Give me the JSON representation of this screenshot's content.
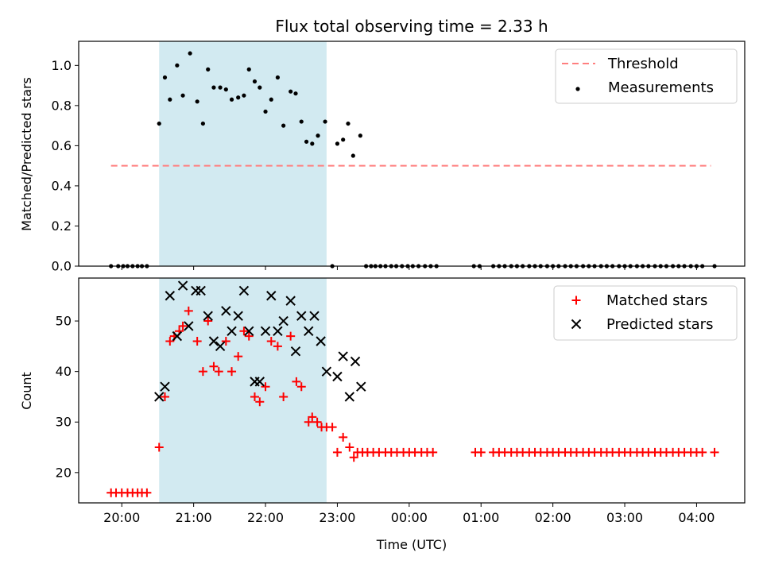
{
  "title": "Flux total observing time = 2.33 h",
  "chart_data": [
    {
      "type": "scatter",
      "panel": "top",
      "ylabel": "Matched/Predicted stars",
      "ylim": [
        0,
        1.12
      ],
      "yticks": [
        0.0,
        0.2,
        0.4,
        0.6,
        0.8,
        1.0
      ],
      "ytick_labels": [
        "0.0",
        "0.2",
        "0.4",
        "0.6",
        "0.8",
        "1.0"
      ],
      "xlim": [
        19.4,
        28.67
      ],
      "legend": {
        "position": "top-right",
        "entries": [
          "Threshold",
          "Measurements"
        ]
      },
      "observing_span": {
        "start": 20.52,
        "end": 22.85,
        "color": "#add8e6"
      },
      "threshold": {
        "name": "Threshold",
        "y": 0.5,
        "x_start": 19.85,
        "x_end": 28.2,
        "color": "#ff7f7f"
      },
      "series": [
        {
          "name": "Measurements",
          "color": "#000000",
          "x": [
            19.85,
            19.95,
            20.02,
            20.08,
            20.15,
            20.22,
            20.28,
            20.35,
            20.52,
            20.6,
            20.67,
            20.77,
            20.85,
            20.95,
            21.05,
            21.13,
            21.2,
            21.28,
            21.37,
            21.45,
            21.53,
            21.62,
            21.7,
            21.77,
            21.85,
            21.92,
            22.0,
            22.08,
            22.17,
            22.25,
            22.35,
            22.42,
            22.5,
            22.57,
            22.65,
            22.73,
            22.83,
            22.93,
            23.0,
            23.08,
            23.15,
            23.22,
            23.32,
            23.4,
            23.47,
            23.53,
            23.6,
            23.67,
            23.75,
            23.82,
            23.9,
            23.98,
            24.05,
            24.13,
            24.22,
            24.3,
            24.38,
            24.9,
            24.98,
            25.17,
            25.25,
            25.33,
            25.42,
            25.5,
            25.58,
            25.67,
            25.75,
            25.83,
            25.92,
            26.0,
            26.08,
            26.17,
            26.25,
            26.33,
            26.42,
            26.5,
            26.58,
            26.67,
            26.75,
            26.83,
            26.92,
            27.0,
            27.08,
            27.17,
            27.25,
            27.33,
            27.42,
            27.5,
            27.58,
            27.67,
            27.75,
            27.83,
            27.92,
            28.0,
            28.08,
            28.25
          ],
          "y": [
            0.0,
            0.0,
            0.0,
            0.0,
            0.0,
            0.0,
            0.0,
            0.0,
            0.71,
            0.94,
            0.83,
            1.0,
            0.85,
            1.06,
            0.82,
            0.71,
            0.98,
            0.89,
            0.89,
            0.88,
            0.83,
            0.84,
            0.85,
            0.98,
            0.92,
            0.89,
            0.77,
            0.83,
            0.94,
            0.7,
            0.87,
            0.86,
            0.72,
            0.62,
            0.61,
            0.65,
            0.72,
            0.0,
            0.61,
            0.63,
            0.71,
            0.55,
            0.65,
            0.0,
            0.0,
            0.0,
            0.0,
            0.0,
            0.0,
            0.0,
            0.0,
            0.0,
            0.0,
            0.0,
            0.0,
            0.0,
            0.0,
            0.0,
            0.0,
            0.0,
            0.0,
            0.0,
            0.0,
            0.0,
            0.0,
            0.0,
            0.0,
            0.0,
            0.0,
            0.0,
            0.0,
            0.0,
            0.0,
            0.0,
            0.0,
            0.0,
            0.0,
            0.0,
            0.0,
            0.0,
            0.0,
            0.0,
            0.0,
            0.0,
            0.0,
            0.0,
            0.0,
            0.0,
            0.0,
            0.0,
            0.0,
            0.0,
            0.0,
            0.0,
            0.0,
            0.0
          ]
        }
      ]
    },
    {
      "type": "scatter",
      "panel": "bottom",
      "ylabel": "Count",
      "xlabel": "Time (UTC)",
      "ylim": [
        14,
        58.5
      ],
      "yticks": [
        20,
        30,
        40,
        50
      ],
      "ytick_labels": [
        "20",
        "30",
        "40",
        "50"
      ],
      "xlim": [
        19.4,
        28.67
      ],
      "xticks": [
        20,
        21,
        22,
        23,
        24,
        25,
        26,
        27,
        28
      ],
      "xtick_labels": [
        "20:00",
        "21:00",
        "22:00",
        "23:00",
        "00:00",
        "01:00",
        "02:00",
        "03:00",
        "04:00"
      ],
      "legend": {
        "position": "top-right",
        "entries": [
          "Matched stars",
          "Predicted stars"
        ]
      },
      "observing_span": {
        "start": 20.52,
        "end": 22.85,
        "color": "#add8e6"
      },
      "series": [
        {
          "name": "Matched stars",
          "marker": "plus",
          "color": "#ff0000",
          "x": [
            19.85,
            19.92,
            20.0,
            20.08,
            20.15,
            20.22,
            20.28,
            20.35,
            20.52,
            20.6,
            20.67,
            20.73,
            20.8,
            20.85,
            20.93,
            21.05,
            21.13,
            21.2,
            21.28,
            21.35,
            21.45,
            21.53,
            21.62,
            21.7,
            21.77,
            21.85,
            21.92,
            22.0,
            22.08,
            22.17,
            22.25,
            22.35,
            22.43,
            22.5,
            22.6,
            22.65,
            22.72,
            22.78,
            22.85,
            22.93,
            23.0,
            23.08,
            23.17,
            23.23,
            23.28,
            23.35,
            23.42,
            23.5,
            23.58,
            23.67,
            23.75,
            23.83,
            23.92,
            24.0,
            24.08,
            24.17,
            24.25,
            24.33,
            24.92,
            25.0,
            25.17,
            25.25,
            25.33,
            25.42,
            25.5,
            25.58,
            25.67,
            25.75,
            25.83,
            25.92,
            26.0,
            26.08,
            26.17,
            26.25,
            26.33,
            26.42,
            26.5,
            26.58,
            26.67,
            26.75,
            26.83,
            26.92,
            27.0,
            27.08,
            27.17,
            27.25,
            27.33,
            27.42,
            27.5,
            27.58,
            27.67,
            27.75,
            27.83,
            27.92,
            28.0,
            28.08,
            28.25
          ],
          "y": [
            16,
            16,
            16,
            16,
            16,
            16,
            16,
            16,
            25,
            35,
            46,
            47,
            48,
            49,
            52,
            46,
            40,
            50,
            41,
            40,
            46,
            40,
            43,
            48,
            47,
            35,
            34,
            37,
            46,
            45,
            35,
            47,
            38,
            37,
            30,
            31,
            30,
            29,
            29,
            29,
            24,
            27,
            25,
            23,
            24,
            24,
            24,
            24,
            24,
            24,
            24,
            24,
            24,
            24,
            24,
            24,
            24,
            24,
            24,
            24,
            24,
            24,
            24,
            24,
            24,
            24,
            24,
            24,
            24,
            24,
            24,
            24,
            24,
            24,
            24,
            24,
            24,
            24,
            24,
            24,
            24,
            24,
            24,
            24,
            24,
            24,
            24,
            24,
            24,
            24,
            24,
            24,
            24,
            24,
            24,
            24,
            24
          ]
        },
        {
          "name": "Predicted stars",
          "marker": "cross",
          "color": "#000000",
          "x": [
            20.52,
            20.6,
            20.67,
            20.77,
            20.85,
            20.93,
            21.03,
            21.1,
            21.2,
            21.28,
            21.37,
            21.45,
            21.53,
            21.62,
            21.7,
            21.77,
            21.85,
            21.92,
            22.0,
            22.08,
            22.17,
            22.25,
            22.35,
            22.42,
            22.5,
            22.6,
            22.68,
            22.77,
            22.85,
            23.0,
            23.08,
            23.17,
            23.25,
            23.33
          ],
          "y": [
            35,
            37,
            55,
            47,
            57,
            49,
            56,
            56,
            51,
            46,
            45,
            52,
            48,
            51,
            56,
            48,
            38,
            38,
            48,
            55,
            48,
            50,
            54,
            44,
            51,
            48,
            51,
            46,
            40,
            39,
            43,
            35,
            42,
            37
          ]
        }
      ]
    }
  ]
}
